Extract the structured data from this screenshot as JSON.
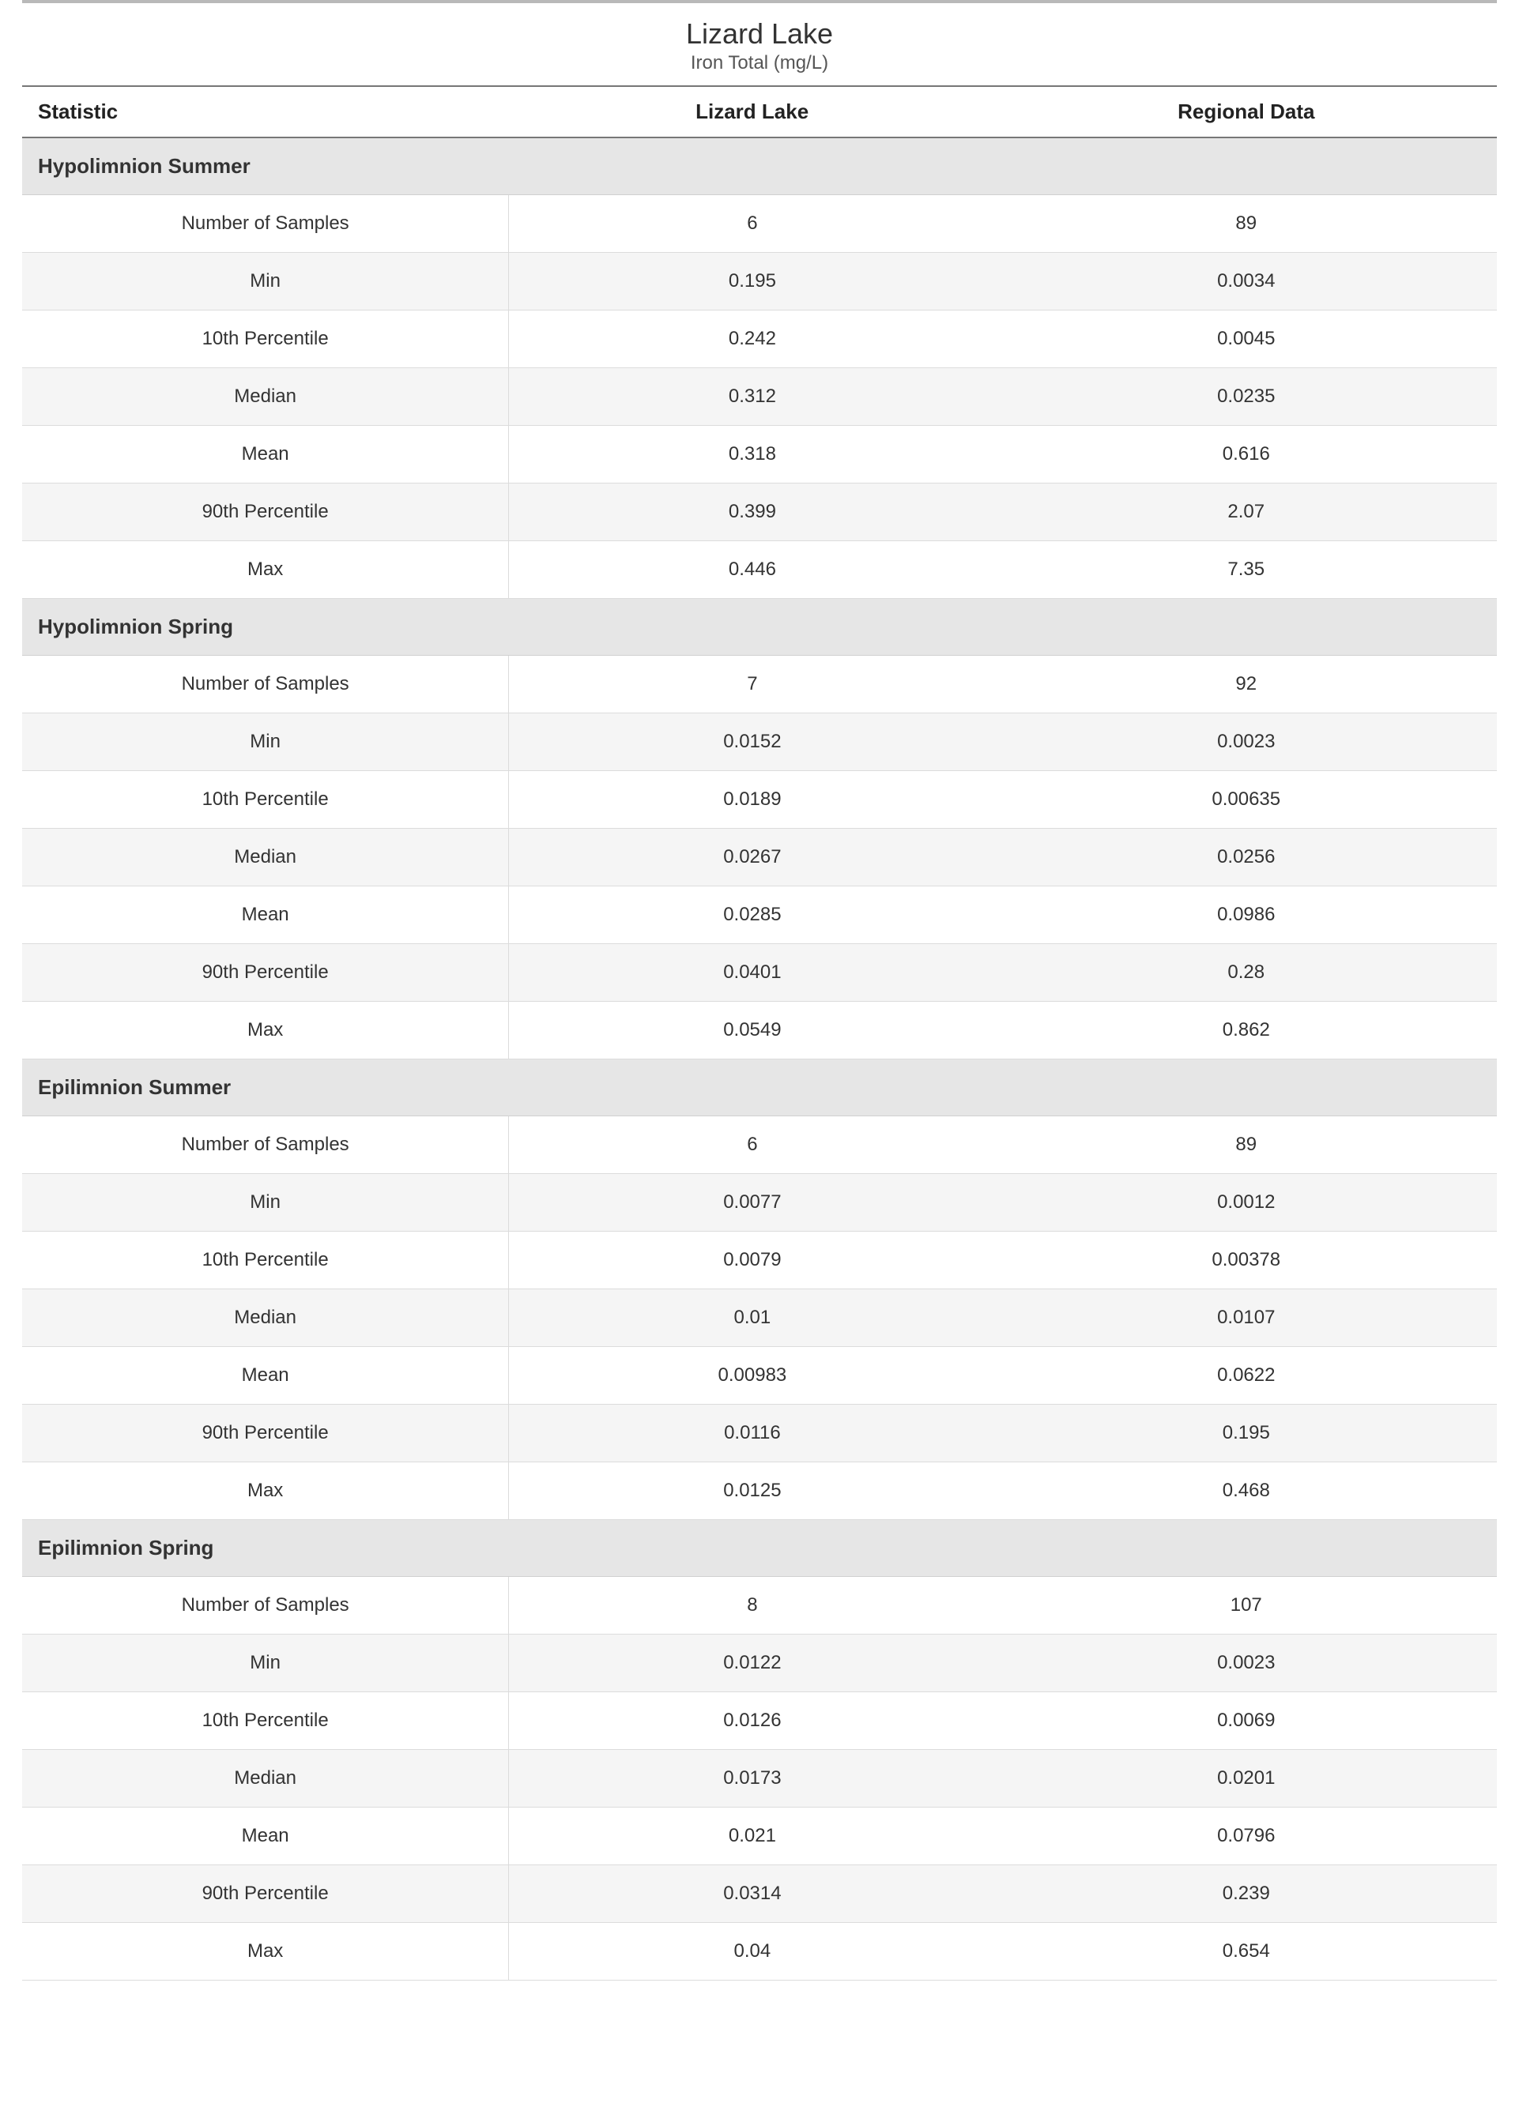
{
  "title": "Lizard Lake",
  "subtitle": "Iron Total (mg/L)",
  "columns": {
    "stat": "Statistic",
    "col1": "Lizard Lake",
    "col2": "Regional Data"
  },
  "style": {
    "rule_color": "#b9b9b9",
    "header_border_color": "#777777",
    "section_bg": "#e6e6e6",
    "row_odd_bg": "#ffffff",
    "row_even_bg": "#f5f5f5",
    "row_border_color": "#dcdcdc",
    "text_color": "#333333",
    "title_fontsize": 36,
    "subtitle_fontsize": 24,
    "header_fontsize": 26,
    "section_fontsize": 26,
    "cell_fontsize": 24
  },
  "sections": [
    {
      "name": "Hypolimnion Summer",
      "rows": [
        {
          "stat": "Number of Samples",
          "v1": "6",
          "v2": "89"
        },
        {
          "stat": "Min",
          "v1": "0.195",
          "v2": "0.0034"
        },
        {
          "stat": "10th Percentile",
          "v1": "0.242",
          "v2": "0.0045"
        },
        {
          "stat": "Median",
          "v1": "0.312",
          "v2": "0.0235"
        },
        {
          "stat": "Mean",
          "v1": "0.318",
          "v2": "0.616"
        },
        {
          "stat": "90th Percentile",
          "v1": "0.399",
          "v2": "2.07"
        },
        {
          "stat": "Max",
          "v1": "0.446",
          "v2": "7.35"
        }
      ]
    },
    {
      "name": "Hypolimnion Spring",
      "rows": [
        {
          "stat": "Number of Samples",
          "v1": "7",
          "v2": "92"
        },
        {
          "stat": "Min",
          "v1": "0.0152",
          "v2": "0.0023"
        },
        {
          "stat": "10th Percentile",
          "v1": "0.0189",
          "v2": "0.00635"
        },
        {
          "stat": "Median",
          "v1": "0.0267",
          "v2": "0.0256"
        },
        {
          "stat": "Mean",
          "v1": "0.0285",
          "v2": "0.0986"
        },
        {
          "stat": "90th Percentile",
          "v1": "0.0401",
          "v2": "0.28"
        },
        {
          "stat": "Max",
          "v1": "0.0549",
          "v2": "0.862"
        }
      ]
    },
    {
      "name": "Epilimnion Summer",
      "rows": [
        {
          "stat": "Number of Samples",
          "v1": "6",
          "v2": "89"
        },
        {
          "stat": "Min",
          "v1": "0.0077",
          "v2": "0.0012"
        },
        {
          "stat": "10th Percentile",
          "v1": "0.0079",
          "v2": "0.00378"
        },
        {
          "stat": "Median",
          "v1": "0.01",
          "v2": "0.0107"
        },
        {
          "stat": "Mean",
          "v1": "0.00983",
          "v2": "0.0622"
        },
        {
          "stat": "90th Percentile",
          "v1": "0.0116",
          "v2": "0.195"
        },
        {
          "stat": "Max",
          "v1": "0.0125",
          "v2": "0.468"
        }
      ]
    },
    {
      "name": "Epilimnion Spring",
      "rows": [
        {
          "stat": "Number of Samples",
          "v1": "8",
          "v2": "107"
        },
        {
          "stat": "Min",
          "v1": "0.0122",
          "v2": "0.0023"
        },
        {
          "stat": "10th Percentile",
          "v1": "0.0126",
          "v2": "0.0069"
        },
        {
          "stat": "Median",
          "v1": "0.0173",
          "v2": "0.0201"
        },
        {
          "stat": "Mean",
          "v1": "0.021",
          "v2": "0.0796"
        },
        {
          "stat": "90th Percentile",
          "v1": "0.0314",
          "v2": "0.239"
        },
        {
          "stat": "Max",
          "v1": "0.04",
          "v2": "0.654"
        }
      ]
    }
  ]
}
